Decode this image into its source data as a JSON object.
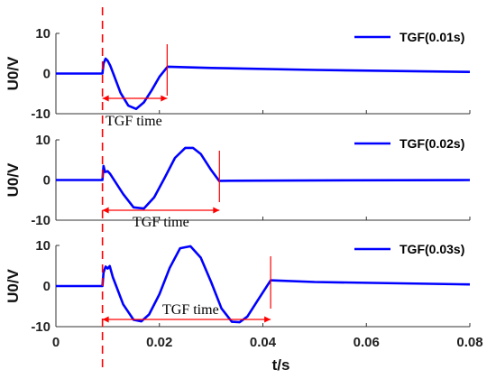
{
  "chart_data": [
    {
      "type": "line",
      "series": [
        {
          "name": "TGF(0.01s)",
          "color": "#0000ff",
          "x": [
            0,
            0.009,
            0.0092,
            0.0096,
            0.01,
            0.0105,
            0.011,
            0.0125,
            0.014,
            0.0155,
            0.017,
            0.0185,
            0.02,
            0.0215,
            0.0216,
            0.03,
            0.05,
            0.08
          ],
          "y": [
            0,
            0,
            2.5,
            3.7,
            3.2,
            2.0,
            0.3,
            -4.8,
            -8.0,
            -8.8,
            -7.2,
            -4.2,
            -0.8,
            1.6,
            1.7,
            1.4,
            0.9,
            0.4
          ]
        }
      ],
      "ylabel": "U0/V",
      "ylim": [
        -10,
        10
      ],
      "yticks": [
        "10",
        "0",
        "-10"
      ],
      "annotation": "TGF time",
      "marker_x": [
        0.009,
        0.0215
      ]
    },
    {
      "type": "line",
      "series": [
        {
          "name": "TGF(0.02s)",
          "color": "#0000ff",
          "x": [
            0,
            0.009,
            0.0092,
            0.0095,
            0.01,
            0.0105,
            0.011,
            0.013,
            0.015,
            0.017,
            0.019,
            0.021,
            0.023,
            0.025,
            0.0265,
            0.028,
            0.03,
            0.0316,
            0.0318,
            0.05,
            0.08
          ],
          "y": [
            0,
            0,
            3.5,
            2.0,
            2.2,
            1.5,
            0.5,
            -3.5,
            -6.8,
            -7.1,
            -4.3,
            0.5,
            5.5,
            8.0,
            8.0,
            6.5,
            2.5,
            -0.3,
            -0.2,
            -0.1,
            0
          ]
        }
      ],
      "ylabel": "U0/V",
      "ylim": [
        -10,
        10
      ],
      "yticks": [
        "10",
        "0",
        "-10"
      ],
      "annotation": "TGF time",
      "marker_x": [
        0.009,
        0.0316
      ]
    },
    {
      "type": "line",
      "series": [
        {
          "name": "TGF(0.03s)",
          "color": "#0000ff",
          "x": [
            0,
            0.009,
            0.0092,
            0.0096,
            0.01,
            0.0104,
            0.011,
            0.013,
            0.015,
            0.0165,
            0.018,
            0.02,
            0.022,
            0.024,
            0.026,
            0.028,
            0.03,
            0.032,
            0.034,
            0.0355,
            0.037,
            0.039,
            0.0415,
            0.0418,
            0.05,
            0.08
          ],
          "y": [
            0,
            0,
            3.3,
            4.8,
            4.3,
            4.9,
            2.2,
            -4.5,
            -8.3,
            -8.7,
            -7.0,
            -2.0,
            4.5,
            9.3,
            9.8,
            7.0,
            1.0,
            -5.5,
            -8.8,
            -8.9,
            -7.5,
            -3.5,
            1.4,
            1.4,
            1.0,
            0.4
          ]
        }
      ],
      "ylabel": "U0/V",
      "ylim": [
        -10,
        10
      ],
      "yticks": [
        "10",
        "0",
        "-10"
      ],
      "annotation": "TGF time",
      "marker_x": [
        0.009,
        0.0415
      ],
      "xlabel": "t/s",
      "xlim": [
        0,
        0.08
      ],
      "xticks": [
        "0",
        "0.02",
        "0.04",
        "0.06",
        "0.08"
      ]
    }
  ],
  "colors": {
    "curve": "#0000ff",
    "marker": "#ff0000",
    "axis": "#333333"
  },
  "global_marker_x": 0.009
}
